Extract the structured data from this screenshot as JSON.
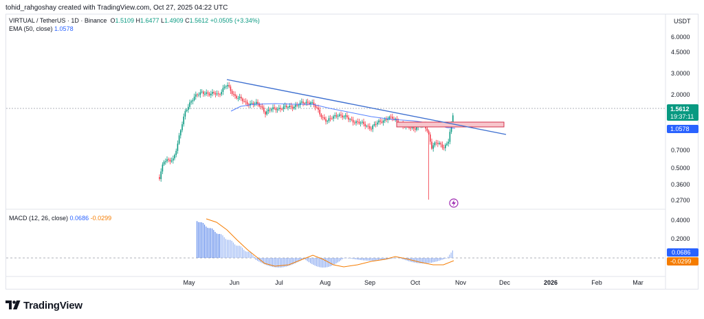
{
  "credit": "tohid_rahgoshay created with TradingView.com, Oct 27, 2025 04:22 UTC",
  "legend": {
    "symbol": "VIRTUAL / TetherUS · 1D · Binance",
    "open_label": "O",
    "open": "1.5109",
    "high_label": "H",
    "high": "1.6477",
    "low_label": "L",
    "low": "1.4909",
    "close_label": "C",
    "close": "1.5612",
    "change": "+0.0505 (+3.34%)",
    "ema_label": "EMA (50, close)",
    "ema_value": "1.0578",
    "macd_label": "MACD (12, 26, close)",
    "macd_value": "0.0686",
    "signal_value": "-0.0299"
  },
  "axis": {
    "currency": "USDT",
    "price_ticks": [
      "6.0000",
      "4.5000",
      "3.0000",
      "2.0000",
      "0.7000",
      "0.5000",
      "0.3600",
      "0.2700"
    ],
    "macd_ticks": [
      "0.4000",
      "0.2000"
    ],
    "time_ticks": [
      {
        "label": "May",
        "bold": false
      },
      {
        "label": "Jun",
        "bold": false
      },
      {
        "label": "Jul",
        "bold": false
      },
      {
        "label": "Aug",
        "bold": false
      },
      {
        "label": "Sep",
        "bold": false
      },
      {
        "label": "Oct",
        "bold": false
      },
      {
        "label": "Nov",
        "bold": false
      },
      {
        "label": "Dec",
        "bold": false
      },
      {
        "label": "2026",
        "bold": true
      },
      {
        "label": "Feb",
        "bold": false
      },
      {
        "label": "Mar",
        "bold": false
      }
    ],
    "last_price": "1.5612",
    "countdown": "19:37:11",
    "ema_badge": "1.0578",
    "macd_badge": "0.0686",
    "signal_badge": "-0.0299"
  },
  "brand": {
    "name": "TradingView"
  },
  "colors": {
    "up": "#089981",
    "down": "#f23645",
    "ema": "#2962ff",
    "trendline": "#3d6fd0",
    "macd_line": "#2962ff",
    "signal_line": "#f57c00",
    "zone_fill": "#f7c6cc",
    "zone_stroke": "#d32f4a",
    "last_price_badge": "#089981",
    "ema_badge": "#2962ff",
    "signal_badge": "#f57c00"
  },
  "chart_data": {
    "type": "candlestick",
    "scale": "log",
    "ylim": [
      0.24,
      7.0
    ],
    "x": [
      "2025-04-22",
      "2025-10-27"
    ],
    "ohlc_summary": [
      [
        "2025-04-22",
        0.42,
        0.78
      ],
      [
        "2025-05-06",
        1.35,
        1.95
      ],
      [
        "2025-05-20",
        2.18,
        2.55
      ],
      [
        "2025-06-01",
        1.9,
        2.05
      ],
      [
        "2025-06-15",
        1.56,
        1.62
      ],
      [
        "2025-07-01",
        1.6,
        1.65
      ],
      [
        "2025-07-21",
        1.93,
        1.98
      ],
      [
        "2025-08-01",
        1.36,
        1.42
      ],
      [
        "2025-08-15",
        1.33,
        1.41
      ],
      [
        "2025-09-01",
        1.2,
        1.24
      ],
      [
        "2025-09-15",
        1.34,
        1.4
      ],
      [
        "2025-09-28",
        1.13,
        1.17
      ],
      [
        "2025-10-10",
        1.05,
        0.72
      ],
      [
        "2025-10-20",
        0.8,
        0.88
      ],
      [
        "2025-10-24",
        1.3,
        1.51
      ],
      [
        "2025-10-27",
        1.5109,
        1.5612
      ]
    ],
    "flash_crash_low": 0.28,
    "ema50_approx": [
      [
        "2025-05-28",
        1.65
      ],
      [
        "2025-06-20",
        1.72
      ],
      [
        "2025-07-20",
        1.68
      ],
      [
        "2025-08-15",
        1.48
      ],
      [
        "2025-09-15",
        1.25
      ],
      [
        "2025-10-10",
        1.15
      ],
      [
        "2025-10-27",
        1.0578
      ]
    ],
    "trendline": [
      [
        "2025-05-28",
        2.65
      ],
      [
        "2025-11-30",
        0.97
      ]
    ],
    "resistance_zone": {
      "x": [
        "2025-09-18",
        "2025-11-30"
      ],
      "y": [
        1.12,
        1.22
      ]
    },
    "macd_hist_range": [
      -0.08,
      0.42
    ]
  }
}
